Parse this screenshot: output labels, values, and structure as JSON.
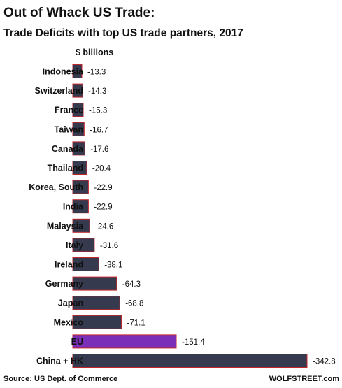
{
  "chart_data": {
    "type": "bar",
    "orientation": "horizontal",
    "title": "Out of Whack US Trade:",
    "subtitle": "Trade Deficits with top US trade partners, 2017",
    "unit_label": "$ billions",
    "categories": [
      "Indonesia",
      "Switzerland",
      "France",
      "Taiwan",
      "Canada",
      "Thailand",
      "Korea, South",
      "India",
      "Malaysia",
      "Italy",
      "Ireland",
      "Germany",
      "Japan",
      "Mexico",
      "EU",
      "China + HK"
    ],
    "values": [
      -13.3,
      -14.3,
      -15.3,
      -16.7,
      -17.6,
      -20.4,
      -22.9,
      -22.9,
      -24.6,
      -31.6,
      -38.1,
      -64.3,
      -68.8,
      -71.1,
      -151.4,
      -342.8
    ],
    "value_labels": [
      "-13.3",
      "-14.3",
      "-15.3",
      "-16.7",
      "-17.6",
      "-20.4",
      "-22.9",
      "-22.9",
      "-24.6",
      "-31.6",
      "-38.1",
      "-64.3",
      "-68.8",
      "-71.1",
      "-151.4",
      "-342.8"
    ],
    "grid": false,
    "legend": "none",
    "colors": {
      "bar_fill": "#353a4f",
      "bar_stroke": "#c0262c",
      "highlight_fill": "#7b2fb8",
      "highlight_category": "EU"
    }
  },
  "footer": {
    "source": "Source: US Dept. of Commerce",
    "brand": "WOLFSTREET.com"
  }
}
